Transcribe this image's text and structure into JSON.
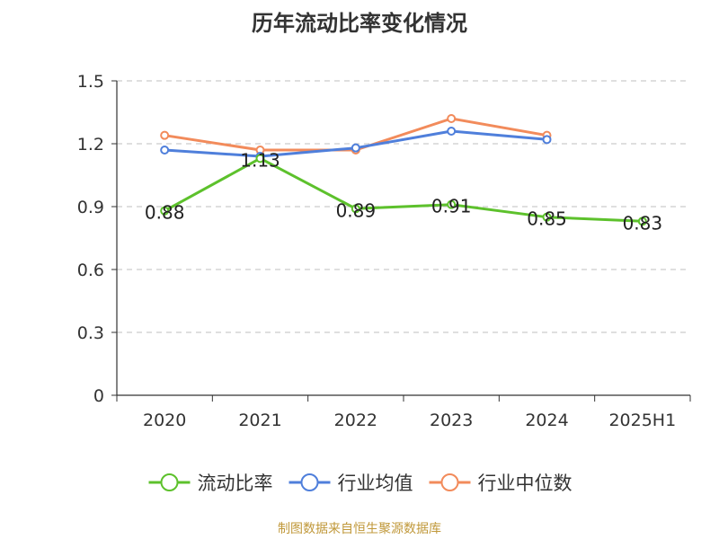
{
  "title": "历年流动比率变化情况",
  "source": "制图数据来自恒生聚源数据库",
  "chart_data": {
    "type": "line",
    "title": "历年流动比率变化情况",
    "categories": [
      "2020",
      "2021",
      "2022",
      "2023",
      "2024",
      "2025H1"
    ],
    "ylim": [
      0,
      1.5
    ],
    "yticks": [
      "0",
      "0.3",
      "0.6",
      "0.9",
      "1.2",
      "1.5"
    ],
    "grid": true,
    "legend_position": "bottom",
    "series": [
      {
        "name": "流动比率",
        "color": "#5dc12c",
        "values": [
          0.88,
          1.13,
          0.89,
          0.91,
          0.85,
          0.83
        ],
        "labels": [
          "0.88",
          "1.13",
          "0.89",
          "0.91",
          "0.85",
          "0.83"
        ],
        "show_labels": true
      },
      {
        "name": "行业均值",
        "color": "#4f7fdb",
        "values": [
          1.17,
          1.14,
          1.18,
          1.26,
          1.22,
          null
        ],
        "show_labels": false
      },
      {
        "name": "行业中位数",
        "color": "#f28b5b",
        "values": [
          1.24,
          1.17,
          1.17,
          1.32,
          1.24,
          null
        ],
        "show_labels": false
      }
    ]
  }
}
